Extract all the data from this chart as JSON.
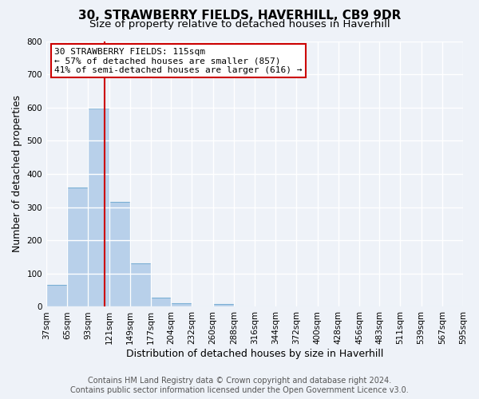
{
  "title": "30, STRAWBERRY FIELDS, HAVERHILL, CB9 9DR",
  "subtitle": "Size of property relative to detached houses in Haverhill",
  "xlabel": "Distribution of detached houses by size in Haverhill",
  "ylabel": "Number of detached properties",
  "bar_edges": [
    37,
    65,
    93,
    121,
    149,
    177,
    204,
    232,
    260,
    288,
    316,
    344,
    372,
    400,
    428,
    456,
    483,
    511,
    539,
    567,
    595
  ],
  "bar_heights": [
    65,
    358,
    597,
    317,
    130,
    28,
    10,
    0,
    8,
    0,
    0,
    0,
    0,
    0,
    0,
    0,
    0,
    0,
    0,
    0
  ],
  "bar_color": "#b8d0ea",
  "bar_edgecolor": "#7aafd4",
  "vline_x": 115,
  "vline_color": "#cc0000",
  "ylim": [
    0,
    800
  ],
  "yticks": [
    0,
    100,
    200,
    300,
    400,
    500,
    600,
    700,
    800
  ],
  "xtick_labels": [
    "37sqm",
    "65sqm",
    "93sqm",
    "121sqm",
    "149sqm",
    "177sqm",
    "204sqm",
    "232sqm",
    "260sqm",
    "288sqm",
    "316sqm",
    "344sqm",
    "372sqm",
    "400sqm",
    "428sqm",
    "456sqm",
    "483sqm",
    "511sqm",
    "539sqm",
    "567sqm",
    "595sqm"
  ],
  "annotation_title": "30 STRAWBERRY FIELDS: 115sqm",
  "annotation_line1": "← 57% of detached houses are smaller (857)",
  "annotation_line2": "41% of semi-detached houses are larger (616) →",
  "annotation_box_facecolor": "#ffffff",
  "annotation_box_edgecolor": "#cc0000",
  "footer1": "Contains HM Land Registry data © Crown copyright and database right 2024.",
  "footer2": "Contains public sector information licensed under the Open Government Licence v3.0.",
  "bg_color": "#eef2f8",
  "grid_color": "#ffffff",
  "title_fontsize": 11,
  "subtitle_fontsize": 9.5,
  "axis_label_fontsize": 9,
  "tick_fontsize": 7.5,
  "annotation_fontsize": 8,
  "footer_fontsize": 7
}
